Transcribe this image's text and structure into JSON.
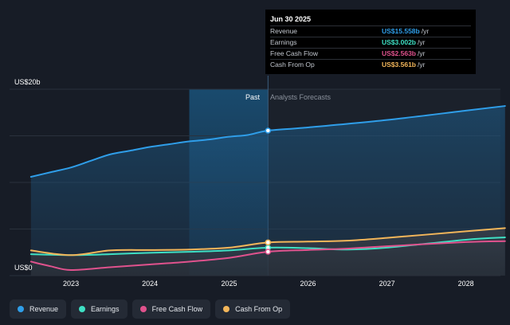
{
  "chart_data": {
    "type": "area",
    "y_axis_label_top": "US$20b",
    "y_axis_label_bottom": "US$0",
    "ylim": [
      0,
      20
    ],
    "x_ticks": [
      "2023",
      "2024",
      "2025",
      "2026",
      "2027",
      "2028"
    ],
    "past_label": "Past",
    "forecast_label": "Analysts Forecasts",
    "divider_date": "2025-06-30",
    "series": [
      {
        "name": "Revenue",
        "color": "#2f9ee9",
        "x": [
          "2022-06-30",
          "2022-09-30",
          "2022-12-31",
          "2023-03-31",
          "2023-06-30",
          "2023-09-30",
          "2023-12-31",
          "2024-03-31",
          "2024-06-30",
          "2024-09-30",
          "2024-12-31",
          "2025-03-31",
          "2025-06-30",
          "2025-12-31",
          "2026-12-31",
          "2027-12-31",
          "2028-06-30"
        ],
        "values": [
          10.6,
          11.1,
          11.6,
          12.3,
          13.0,
          13.4,
          13.8,
          14.1,
          14.4,
          14.6,
          14.9,
          15.1,
          15.558,
          15.9,
          16.7,
          17.7,
          18.2
        ]
      },
      {
        "name": "Earnings",
        "color": "#3ee0c4",
        "x": [
          "2022-06-30",
          "2022-12-31",
          "2023-06-30",
          "2023-12-31",
          "2024-06-30",
          "2024-12-31",
          "2025-06-30",
          "2025-12-31",
          "2026-06-30",
          "2026-12-31",
          "2027-12-31",
          "2028-06-30"
        ],
        "values": [
          2.3,
          2.2,
          2.3,
          2.45,
          2.55,
          2.7,
          3.002,
          2.95,
          2.8,
          3.0,
          3.85,
          4.1
        ]
      },
      {
        "name": "Free Cash Flow",
        "color": "#e0528d",
        "x": [
          "2022-06-30",
          "2022-09-30",
          "2022-12-31",
          "2023-06-30",
          "2023-12-31",
          "2024-06-30",
          "2024-12-31",
          "2025-06-30",
          "2025-12-31",
          "2026-06-30",
          "2026-12-31",
          "2027-12-31",
          "2028-06-30"
        ],
        "values": [
          1.5,
          1.0,
          0.6,
          0.9,
          1.2,
          1.5,
          1.9,
          2.563,
          2.75,
          2.9,
          3.15,
          3.6,
          3.7
        ]
      },
      {
        "name": "Cash From Op",
        "color": "#f3b65a",
        "x": [
          "2022-06-30",
          "2022-12-31",
          "2023-06-30",
          "2023-12-31",
          "2024-06-30",
          "2024-12-31",
          "2025-06-30",
          "2025-12-31",
          "2026-06-30",
          "2026-12-31",
          "2027-12-31",
          "2028-06-30"
        ],
        "values": [
          2.7,
          2.2,
          2.7,
          2.75,
          2.8,
          3.0,
          3.561,
          3.65,
          3.75,
          4.05,
          4.75,
          5.1
        ]
      }
    ],
    "tooltip": {
      "title": "Jun 30 2025",
      "rows": [
        {
          "label": "Revenue",
          "value": "US$15.558b",
          "unit": "/yr",
          "color": "#2f9ee9"
        },
        {
          "label": "Earnings",
          "value": "US$3.002b",
          "unit": "/yr",
          "color": "#3ee0c4"
        },
        {
          "label": "Free Cash Flow",
          "value": "US$2.563b",
          "unit": "/yr",
          "color": "#e0528d"
        },
        {
          "label": "Cash From Op",
          "value": "US$3.561b",
          "unit": "/yr",
          "color": "#f3b65a"
        }
      ]
    },
    "legend": [
      {
        "label": "Revenue",
        "color": "#2f9ee9"
      },
      {
        "label": "Earnings",
        "color": "#3ee0c4"
      },
      {
        "label": "Free Cash Flow",
        "color": "#e0528d"
      },
      {
        "label": "Cash From Op",
        "color": "#f3b65a"
      }
    ]
  }
}
